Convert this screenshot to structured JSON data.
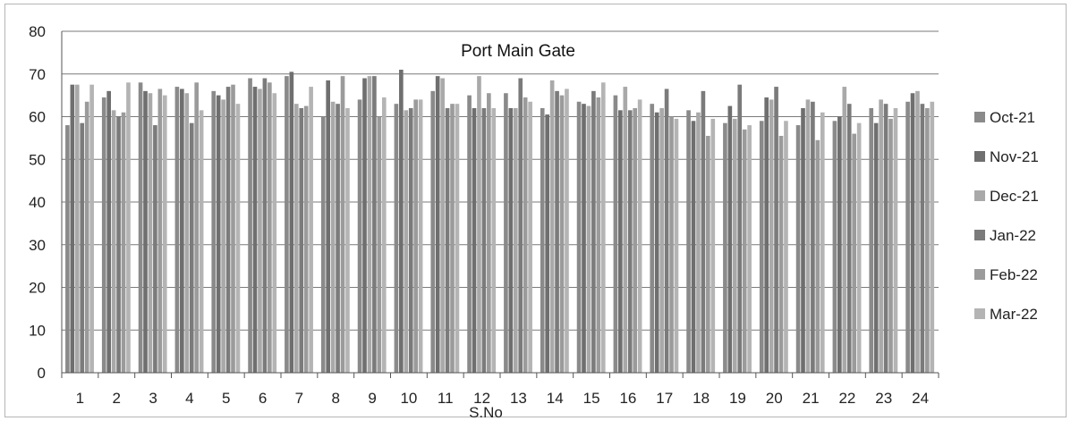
{
  "chart_data": {
    "type": "bar",
    "title": "Port Main Gate",
    "xlabel": "S.No",
    "ylabel": "",
    "ylim": [
      0,
      80
    ],
    "yticks": [
      0,
      10,
      20,
      30,
      40,
      50,
      60,
      70,
      80
    ],
    "grid": "horizontal",
    "legend_position": "right",
    "categories": [
      "1",
      "2",
      "3",
      "4",
      "5",
      "6",
      "7",
      "8",
      "9",
      "10",
      "11",
      "12",
      "13",
      "14",
      "15",
      "16",
      "17",
      "18",
      "19",
      "20",
      "21",
      "22",
      "23",
      "24"
    ],
    "series": [
      {
        "name": "Oct-21",
        "color": "#8a8a8a",
        "values": [
          58,
          64.5,
          68,
          67,
          66,
          69,
          69.5,
          60,
          64,
          63,
          66,
          65,
          65.5,
          62,
          63.5,
          65,
          63,
          61.5,
          58.5,
          59,
          58,
          59,
          62,
          63.5
        ]
      },
      {
        "name": "Nov-21",
        "color": "#6f6f6f",
        "values": [
          67.5,
          66,
          66,
          66.5,
          65,
          67,
          70.5,
          68.5,
          69,
          71,
          69.5,
          62,
          62,
          60.5,
          63,
          61.5,
          61,
          59,
          62.5,
          64.5,
          62,
          60,
          58.5,
          65.5
        ]
      },
      {
        "name": "Dec-21",
        "color": "#a9a9a9",
        "values": [
          67.5,
          61.5,
          65.5,
          65.5,
          64,
          66.5,
          63,
          63.5,
          69.5,
          61.5,
          69,
          69.5,
          62,
          68.5,
          62.5,
          67,
          62,
          61,
          59.5,
          64,
          64,
          67,
          64,
          66
        ]
      },
      {
        "name": "Jan-22",
        "color": "#7b7b7b",
        "values": [
          58.5,
          60,
          58,
          58.5,
          67,
          69,
          62,
          63,
          69.5,
          62,
          62,
          62,
          69,
          66,
          66,
          61.5,
          66.5,
          66,
          67.5,
          67,
          63.5,
          63,
          63,
          63
        ]
      },
      {
        "name": "Feb-22",
        "color": "#9b9b9b",
        "values": [
          63.5,
          61,
          66.5,
          68,
          67.5,
          68,
          62.5,
          69.5,
          60,
          64,
          63,
          65.5,
          64.5,
          65,
          64.5,
          62,
          60,
          55.5,
          57,
          55.5,
          54.5,
          56,
          59.5,
          62
        ]
      },
      {
        "name": "Mar-22",
        "color": "#b4b4b4",
        "values": [
          67.5,
          68,
          65,
          61.5,
          63,
          65.5,
          67,
          62,
          64.5,
          64,
          63,
          62,
          63.5,
          66.5,
          68,
          64,
          59.5,
          59.5,
          58,
          59,
          61,
          58.5,
          62,
          63.5
        ]
      }
    ]
  }
}
